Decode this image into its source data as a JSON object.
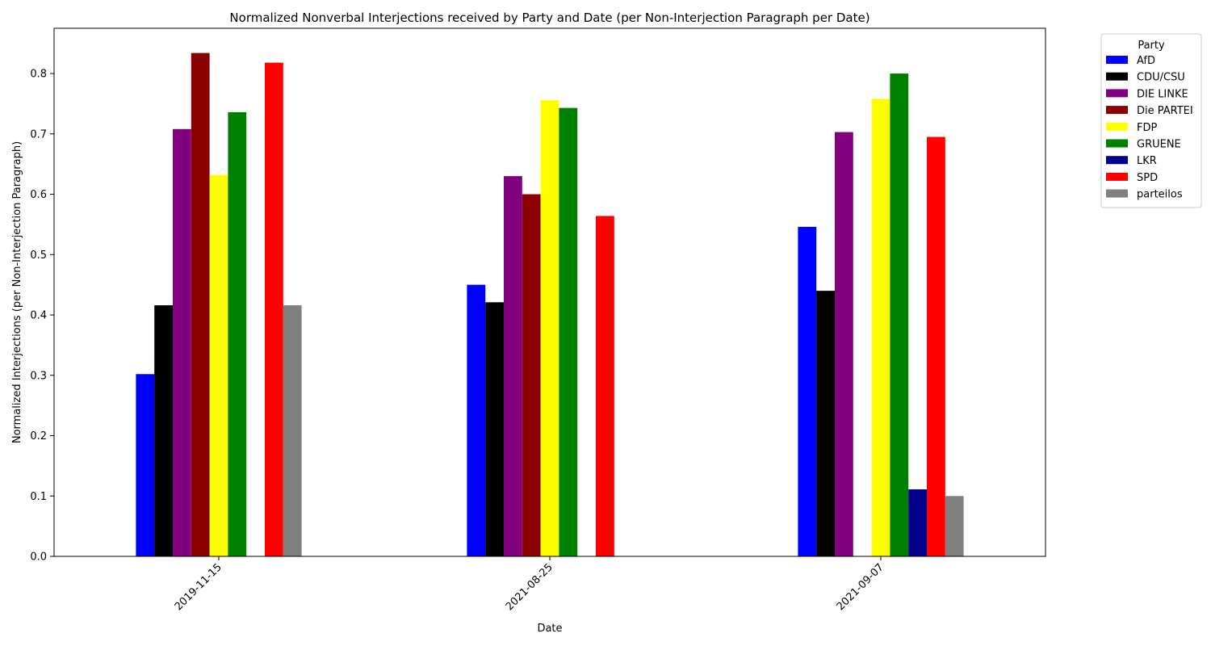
{
  "chart_data": {
    "type": "bar",
    "title": "Normalized Nonverbal Interjections received by Party and Date (per Non-Interjection Paragraph per Date)",
    "xlabel": "Date",
    "ylabel": "Normalized Interjections (per Non-Interjection Paragraph)",
    "categories": [
      "2019-11-15",
      "2021-08-25",
      "2021-09-07"
    ],
    "ylim": [
      0,
      0.875
    ],
    "yticks": [
      "0.0",
      "0.1",
      "0.2",
      "0.3",
      "0.4",
      "0.5",
      "0.6",
      "0.7",
      "0.8"
    ],
    "grid": false,
    "legend_title": "Party",
    "legend_position": "outside-top-right",
    "series": [
      {
        "name": "AfD",
        "color": "#0000ff",
        "values": [
          0.302,
          0.45,
          0.546
        ]
      },
      {
        "name": "CDU/CSU",
        "color": "#000000",
        "values": [
          0.416,
          0.421,
          0.44
        ]
      },
      {
        "name": "DIE LINKE",
        "color": "#800080",
        "values": [
          0.708,
          0.63,
          0.703
        ]
      },
      {
        "name": "Die PARTEI",
        "color": "#8b0000",
        "values": [
          0.834,
          0.6,
          null
        ]
      },
      {
        "name": "FDP",
        "color": "#ffff00",
        "values": [
          0.632,
          0.756,
          0.758
        ]
      },
      {
        "name": "GRUENE",
        "color": "#008000",
        "values": [
          0.736,
          0.743,
          0.8
        ]
      },
      {
        "name": "LKR",
        "color": "#00008b",
        "values": [
          null,
          null,
          0.111
        ]
      },
      {
        "name": "SPD",
        "color": "#ff0000",
        "values": [
          0.818,
          0.564,
          0.695
        ]
      },
      {
        "name": "parteilos",
        "color": "#808080",
        "values": [
          0.416,
          null,
          0.1
        ]
      }
    ]
  }
}
